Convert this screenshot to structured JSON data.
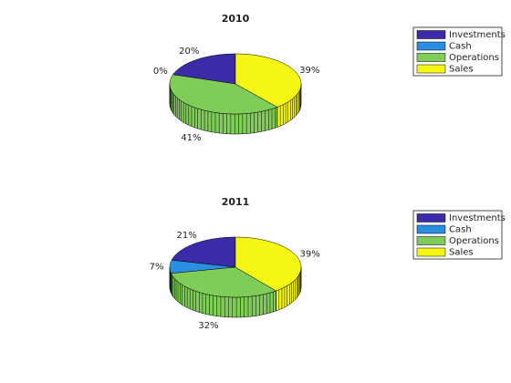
{
  "chart_data": [
    {
      "type": "pie",
      "title": "2010",
      "categories": [
        "Investments",
        "Cash",
        "Operations",
        "Sales"
      ],
      "values": [
        20,
        0,
        41,
        39
      ],
      "value_labels": [
        "20%",
        "0%",
        "41%",
        "39%"
      ],
      "colors": [
        "#3b2ba8",
        "#2a8fe2",
        "#80cc58",
        "#f6f614"
      ],
      "legend": "northeast"
    },
    {
      "type": "pie",
      "title": "2011",
      "categories": [
        "Investments",
        "Cash",
        "Operations",
        "Sales"
      ],
      "values": [
        21,
        7,
        32,
        39
      ],
      "value_labels": [
        "21%",
        "7%",
        "32%",
        "39%"
      ],
      "colors": [
        "#3b2ba8",
        "#2a8fe2",
        "#80cc58",
        "#f6f614"
      ],
      "legend": "northeast"
    }
  ]
}
